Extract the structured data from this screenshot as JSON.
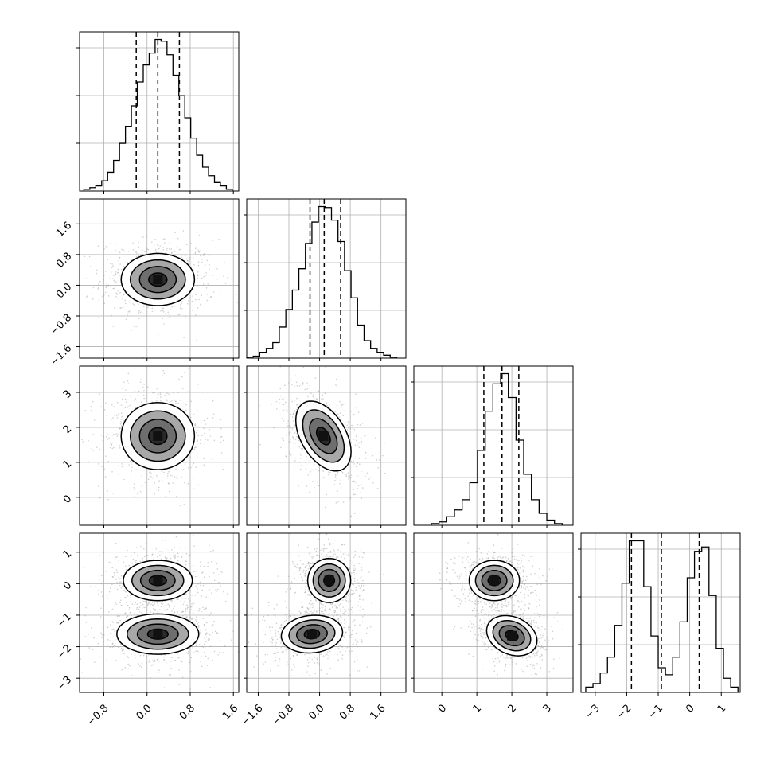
{
  "chart_data": {
    "type": "corner",
    "title": "",
    "n_params": 4,
    "param_labels": [
      "",
      "",
      "",
      ""
    ],
    "ranges": [
      [
        -1.25,
        1.7
      ],
      [
        -1.9,
        2.25
      ],
      [
        -0.8,
        3.75
      ],
      [
        -3.45,
        1.6
      ]
    ],
    "ticks": [
      [
        -0.8,
        0.0,
        0.8,
        1.6
      ],
      [
        -1.6,
        -0.8,
        0.0,
        0.8,
        1.6
      ],
      [
        0,
        1,
        2,
        3
      ],
      [
        -3,
        -2,
        -1,
        0,
        1
      ]
    ],
    "tick_labels": [
      [
        "−0.8",
        "0.0",
        "0.8",
        "1.6"
      ],
      [
        "−1.6",
        "−0.8",
        "0.0",
        "0.8",
        "1.6"
      ],
      [
        "0",
        "1",
        "2",
        "3"
      ],
      [
        "−3",
        "−2",
        "−1",
        "0",
        "1"
      ]
    ],
    "grid": true,
    "quantiles": [
      [
        -0.2,
        0.2,
        0.6
      ],
      [
        -0.25,
        0.12,
        0.55
      ],
      [
        1.2,
        1.72,
        2.2
      ],
      [
        -1.85,
        -0.9,
        0.3
      ]
    ],
    "histograms": [
      {
        "bin_edges": [
          -1.17,
          -1.06,
          -0.95,
          -0.84,
          -0.73,
          -0.62,
          -0.51,
          -0.4,
          -0.29,
          -0.18,
          -0.07,
          0.04,
          0.15,
          0.26,
          0.37,
          0.48,
          0.59,
          0.7,
          0.81,
          0.92,
          1.03,
          1.14,
          1.25,
          1.36,
          1.47,
          1.58
        ],
        "counts": [
          2,
          4,
          6,
          12,
          22,
          36,
          56,
          76,
          100,
          128,
          148,
          162,
          178,
          176,
          160,
          136,
          112,
          86,
          62,
          42,
          28,
          18,
          10,
          6,
          2
        ]
      },
      {
        "bin_edges": [
          -1.9,
          -1.73,
          -1.56,
          -1.39,
          -1.22,
          -1.05,
          -0.88,
          -0.71,
          -0.54,
          -0.37,
          -0.2,
          -0.03,
          0.14,
          0.31,
          0.48,
          0.65,
          0.82,
          0.99,
          1.16,
          1.33,
          1.5,
          1.67,
          1.84,
          2.01
        ],
        "counts": [
          1,
          2,
          6,
          10,
          16,
          32,
          50,
          70,
          92,
          118,
          140,
          156,
          155,
          142,
          120,
          90,
          62,
          34,
          18,
          10,
          6,
          3,
          1
        ]
      },
      {
        "bin_edges": [
          -0.3,
          -0.08,
          0.14,
          0.36,
          0.58,
          0.8,
          1.02,
          1.24,
          1.46,
          1.68,
          1.9,
          2.12,
          2.34,
          2.56,
          2.78,
          3.0,
          3.22,
          3.44
        ],
        "counts": [
          2,
          4,
          10,
          18,
          30,
          50,
          88,
          134,
          166,
          178,
          150,
          100,
          60,
          30,
          14,
          6,
          2
        ]
      },
      {
        "bin_edges": [
          -3.3,
          -3.07,
          -2.84,
          -2.61,
          -2.38,
          -2.15,
          -1.92,
          -1.69,
          -1.46,
          -1.23,
          -1.0,
          -0.77,
          -0.54,
          -0.31,
          -0.08,
          0.15,
          0.38,
          0.61,
          0.84,
          1.07,
          1.3,
          1.53
        ],
        "counts": [
          6,
          10,
          22,
          40,
          76,
          124,
          172,
          172,
          120,
          64,
          28,
          20,
          40,
          80,
          130,
          160,
          165,
          110,
          50,
          16,
          6
        ]
      }
    ],
    "joint_blobs": [
      {
        "pair": [
          1,
          0
        ],
        "modes": [
          {
            "mx": 0.2,
            "my": 0.15,
            "sx": 0.34,
            "sy": 0.34,
            "rho": 0.0
          }
        ]
      },
      {
        "pair": [
          2,
          0
        ],
        "modes": [
          {
            "mx": 0.2,
            "my": 1.75,
            "sx": 0.34,
            "sy": 0.48,
            "rho": 0.0
          }
        ]
      },
      {
        "pair": [
          2,
          1
        ],
        "modes": [
          {
            "mx": 0.1,
            "my": 1.75,
            "sx": 0.36,
            "sy": 0.5,
            "rho": -0.45
          }
        ]
      },
      {
        "pair": [
          3,
          0
        ],
        "modes": [
          {
            "mx": 0.2,
            "my": 0.1,
            "sx": 0.32,
            "sy": 0.32,
            "rho": 0.0
          },
          {
            "mx": 0.2,
            "my": -1.6,
            "sx": 0.38,
            "sy": 0.32,
            "rho": 0.0
          }
        ]
      },
      {
        "pair": [
          3,
          1
        ],
        "modes": [
          {
            "mx": 0.25,
            "my": 0.1,
            "sx": 0.28,
            "sy": 0.35,
            "rho": 0.0
          },
          {
            "mx": -0.2,
            "my": -1.6,
            "sx": 0.4,
            "sy": 0.3,
            "rho": 0.1
          }
        ]
      },
      {
        "pair": [
          3,
          2
        ],
        "modes": [
          {
            "mx": 1.5,
            "my": 0.1,
            "sx": 0.36,
            "sy": 0.32,
            "rho": 0.0
          },
          {
            "mx": 2.0,
            "my": -1.65,
            "sx": 0.36,
            "sy": 0.32,
            "rho": -0.25
          }
        ]
      }
    ],
    "contour_levels_sigma": [
      0.5,
      1.0,
      1.5,
      2.0
    ]
  }
}
